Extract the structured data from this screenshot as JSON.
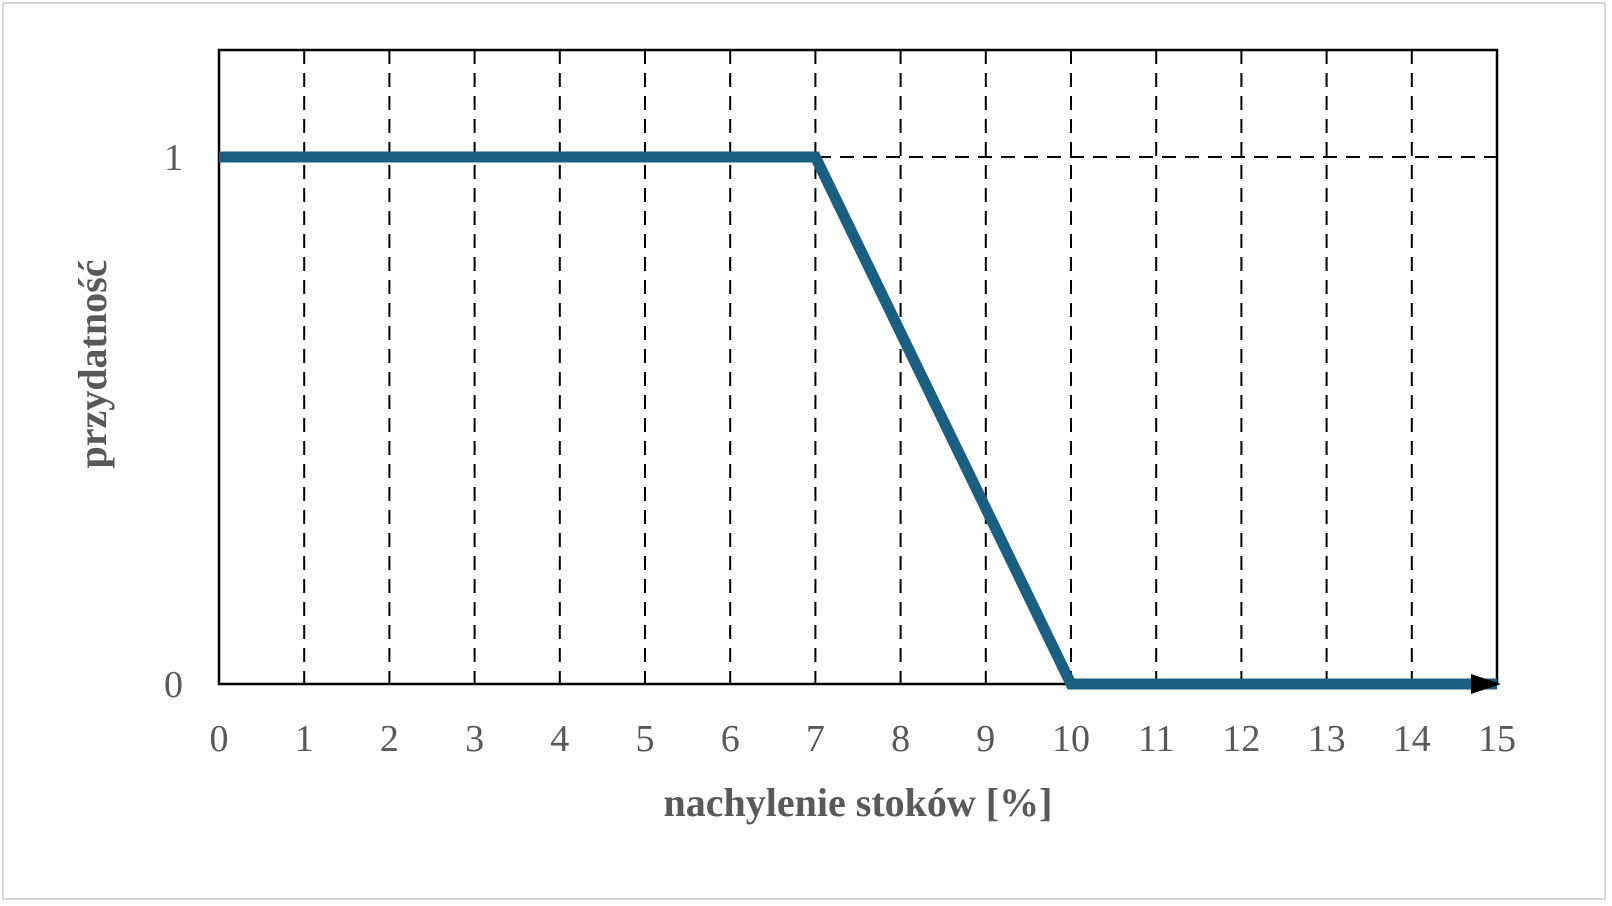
{
  "chart_data": {
    "type": "line",
    "title": "",
    "xlabel": "nachylenie stoków [%]",
    "ylabel": "przydatność",
    "xlim": [
      0,
      15
    ],
    "ylim": [
      0,
      1
    ],
    "x_ticks": [
      "0",
      "1",
      "2",
      "3",
      "4",
      "5",
      "6",
      "7",
      "8",
      "9",
      "10",
      "11",
      "12",
      "13",
      "14",
      "15"
    ],
    "y_ticks": [
      "0",
      "1"
    ],
    "grid": "dashed, vertical at every x tick, horizontal at y = 1",
    "x_axis_arrow": true,
    "series": [
      {
        "x": [
          0,
          7,
          10,
          15
        ],
        "y": [
          1,
          1,
          0,
          0
        ],
        "color": "#1a5e80"
      }
    ]
  }
}
